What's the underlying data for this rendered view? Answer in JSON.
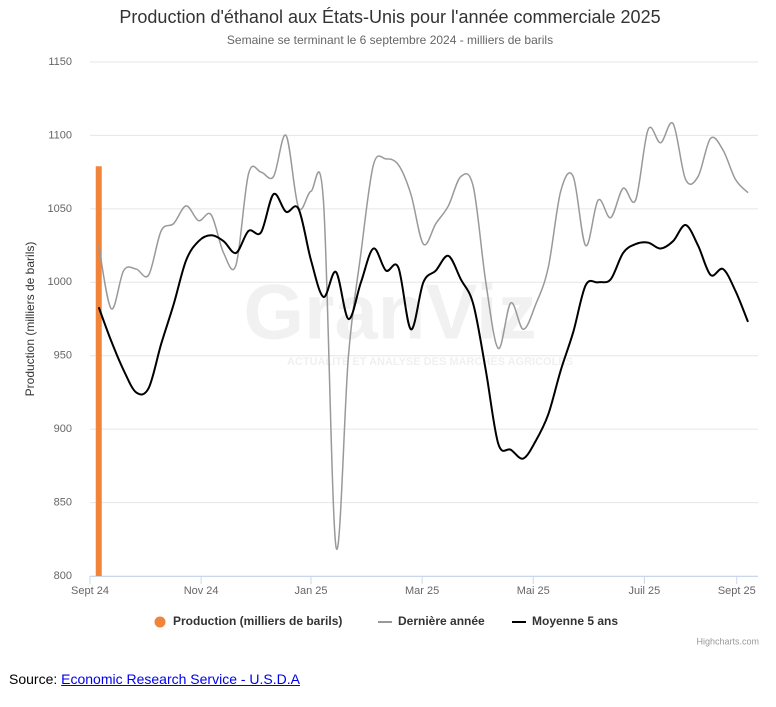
{
  "chart_data": {
    "type": "line",
    "title": "Production d'éthanol aux États-Unis pour l'année commerciale 2025",
    "subtitle": "Semaine se terminant le 6 septembre 2024 - milliers de barils",
    "y_label": "Production (milliers de barils)",
    "watermark": {
      "brand": "GranViz",
      "tagline": "ACTUALITÉ ET ANALYSE DES MARCHÉS AGRICOLES"
    },
    "credits": "Highcharts.com",
    "x": [
      0,
      1,
      2,
      3,
      4,
      5,
      6,
      7,
      8,
      9,
      10,
      11,
      12,
      13,
      14,
      15,
      16,
      17,
      18,
      19,
      20,
      21,
      22,
      23,
      24,
      25,
      26,
      27,
      28,
      29,
      30,
      31,
      32,
      33,
      34,
      35,
      36,
      37,
      38,
      39,
      40,
      41,
      42,
      43,
      44,
      45,
      46,
      47,
      48,
      49,
      50,
      51,
      52
    ],
    "xlim": [
      -0.7,
      52.8
    ],
    "xticks": [
      {
        "value": -0.7,
        "label": "Sept 24"
      },
      {
        "value": 8.2,
        "label": "Nov 24"
      },
      {
        "value": 17.0,
        "label": "Jan 25"
      },
      {
        "value": 25.9,
        "label": "Mar 25"
      },
      {
        "value": 34.8,
        "label": "Mai 25"
      },
      {
        "value": 43.7,
        "label": "Juil 25"
      },
      {
        "value": 51.1,
        "label": "Sept 25"
      }
    ],
    "ylim": [
      800,
      1150
    ],
    "yticks": [
      800,
      850,
      900,
      950,
      1000,
      1050,
      1100,
      1150
    ],
    "grid": true,
    "series": [
      {
        "name": "Production (milliers de barils)",
        "type": "bar",
        "color": "#f0843a",
        "values": [
          1079,
          null,
          null,
          null,
          null,
          null,
          null,
          null,
          null,
          null,
          null,
          null,
          null,
          null,
          null,
          null,
          null,
          null,
          null,
          null,
          null,
          null,
          null,
          null,
          null,
          null,
          null,
          null,
          null,
          null,
          null,
          null,
          null,
          null,
          null,
          null,
          null,
          null,
          null,
          null,
          null,
          null,
          null,
          null,
          null,
          null,
          null,
          null,
          null,
          null,
          null,
          null,
          null
        ]
      },
      {
        "name": "Dernière année",
        "type": "line",
        "color": "#999999",
        "values": [
          1025,
          982,
          1008,
          1009,
          1005,
          1035,
          1040,
          1052,
          1042,
          1046,
          1020,
          1012,
          1074,
          1075,
          1072,
          1100,
          1051,
          1062,
          1055,
          820,
          950,
          1020,
          1080,
          1084,
          1080,
          1060,
          1026,
          1040,
          1052,
          1072,
          1065,
          1000,
          955,
          986,
          968,
          985,
          1010,
          1062,
          1072,
          1025,
          1056,
          1044,
          1064,
          1056,
          1104,
          1095,
          1108,
          1070,
          1072,
          1098,
          1090,
          1070,
          1061
        ]
      },
      {
        "name": "Moyenne 5 ans",
        "type": "line",
        "color": "#000000",
        "values": [
          983,
          960,
          940,
          925,
          928,
          958,
          985,
          1015,
          1028,
          1032,
          1028,
          1020,
          1035,
          1034,
          1060,
          1048,
          1050,
          1015,
          990,
          1007,
          975,
          1000,
          1023,
          1008,
          1010,
          968,
          1000,
          1008,
          1018,
          1002,
          985,
          940,
          890,
          886,
          880,
          892,
          910,
          940,
          966,
          998,
          1000,
          1002,
          1020,
          1026,
          1027,
          1023,
          1028,
          1039,
          1025,
          1005,
          1009,
          994,
          973
        ]
      }
    ]
  },
  "footer": {
    "label": "Source:",
    "link": "Economic Research Service - U.S.D.A"
  }
}
